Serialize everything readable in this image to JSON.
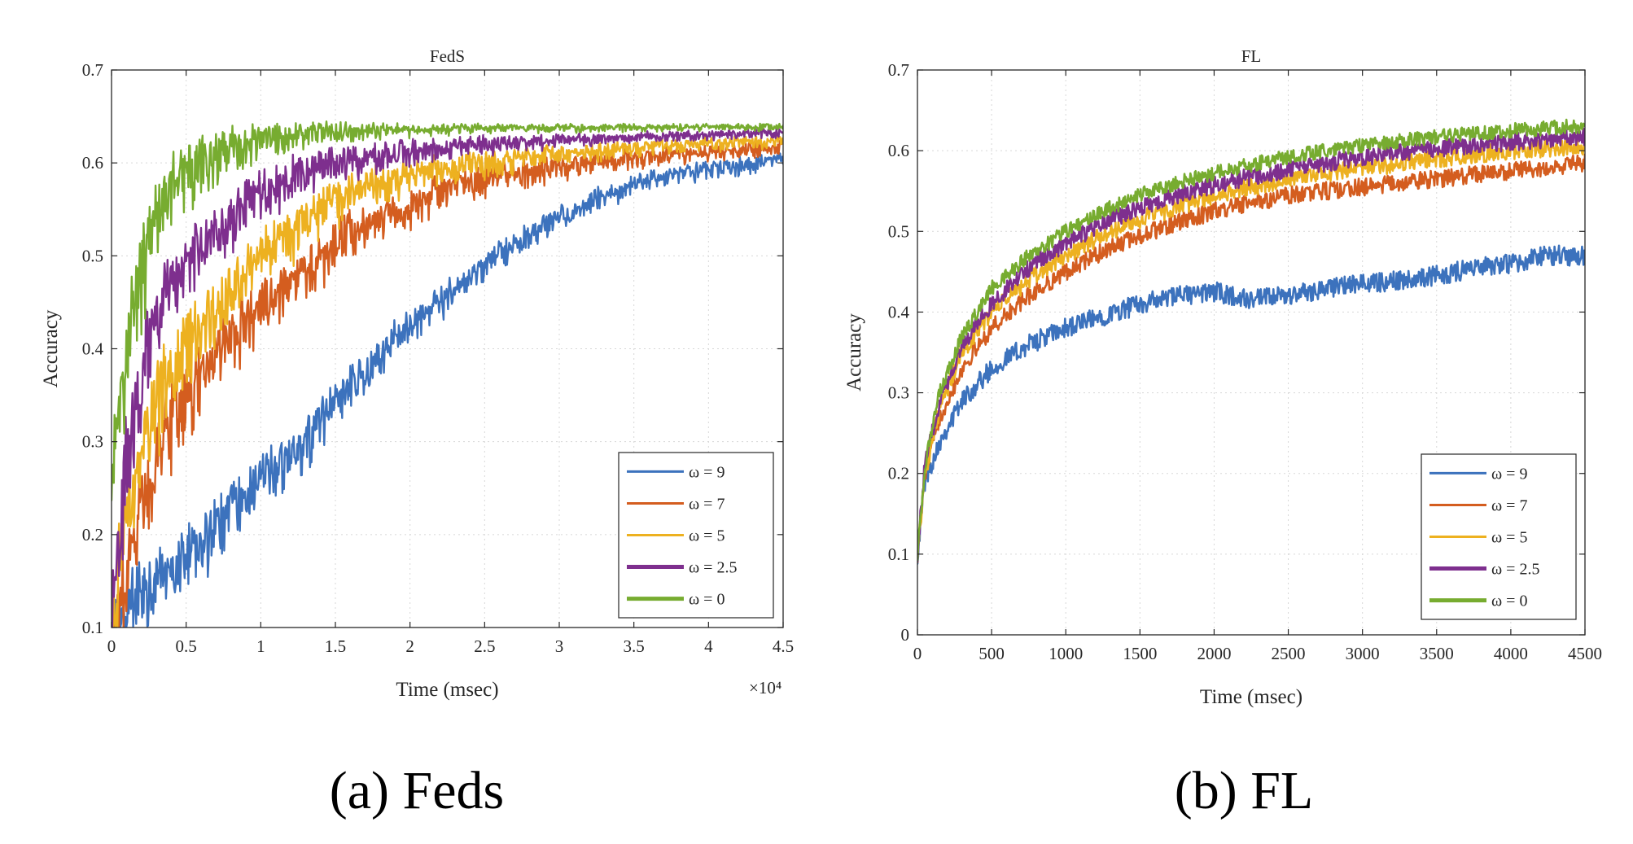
{
  "chart_data": [
    {
      "type": "line",
      "title": "FedS",
      "xlabel": "Time (msec)",
      "ylabel": "Accuracy",
      "x_multiplier": "×10⁴",
      "xlim": [
        0,
        4.5
      ],
      "ylim": [
        0.1,
        0.7
      ],
      "xticks": [
        0,
        0.5,
        1,
        1.5,
        2,
        2.5,
        3,
        3.5,
        4,
        4.5
      ],
      "xtick_labels": [
        "0",
        "0.5",
        "1",
        "1.5",
        "2",
        "2.5",
        "3",
        "3.5",
        "4",
        "4.5"
      ],
      "yticks": [
        0.1,
        0.2,
        0.3,
        0.4,
        0.5,
        0.6,
        0.7
      ],
      "ytick_labels": [
        "0.1",
        "0.2",
        "0.3",
        "0.4",
        "0.5",
        "0.6",
        "0.7"
      ],
      "grid": true,
      "legend_position": "bottom-right",
      "series": [
        {
          "name": "ω = 9",
          "color": "#3c72bd",
          "x": [
            0,
            0.1,
            0.25,
            0.5,
            0.75,
            1,
            1.25,
            1.5,
            1.75,
            2,
            2.25,
            2.5,
            2.75,
            3,
            3.25,
            3.5,
            3.75,
            4,
            4.25,
            4.5
          ],
          "values": [
            0.11,
            0.15,
            0.17,
            0.2,
            0.24,
            0.28,
            0.31,
            0.36,
            0.4,
            0.44,
            0.47,
            0.5,
            0.53,
            0.55,
            0.57,
            0.585,
            0.595,
            0.6,
            0.605,
            0.61
          ]
        },
        {
          "name": "ω = 7",
          "color": "#d45d1f",
          "x": [
            0,
            0.1,
            0.25,
            0.5,
            0.75,
            1,
            1.25,
            1.5,
            1.75,
            2,
            2.25,
            2.5,
            2.75,
            3,
            3.25,
            3.5,
            3.75,
            4,
            4.25,
            4.5
          ],
          "values": [
            0.12,
            0.2,
            0.3,
            0.38,
            0.43,
            0.47,
            0.5,
            0.53,
            0.555,
            0.57,
            0.585,
            0.595,
            0.6,
            0.605,
            0.61,
            0.613,
            0.616,
            0.618,
            0.62,
            0.622
          ]
        },
        {
          "name": "ω = 5",
          "color": "#edb120",
          "x": [
            0,
            0.1,
            0.25,
            0.5,
            0.75,
            1,
            1.25,
            1.5,
            1.75,
            2,
            2.25,
            2.5,
            2.75,
            3,
            3.25,
            3.5,
            3.75,
            4,
            4.25,
            4.5
          ],
          "values": [
            0.14,
            0.26,
            0.36,
            0.43,
            0.48,
            0.52,
            0.55,
            0.575,
            0.59,
            0.6,
            0.606,
            0.61,
            0.614,
            0.617,
            0.62,
            0.622,
            0.624,
            0.626,
            0.627,
            0.628
          ]
        },
        {
          "name": "ω = 2.5",
          "color": "#7e2f8e",
          "x": [
            0,
            0.1,
            0.25,
            0.5,
            0.75,
            1,
            1.25,
            1.5,
            1.75,
            2,
            2.25,
            2.5,
            2.75,
            3,
            3.25,
            3.5,
            3.75,
            4,
            4.25,
            4.5
          ],
          "values": [
            0.14,
            0.33,
            0.45,
            0.52,
            0.56,
            0.59,
            0.605,
            0.613,
            0.618,
            0.622,
            0.625,
            0.627,
            0.629,
            0.63,
            0.631,
            0.632,
            0.633,
            0.634,
            0.635,
            0.636
          ]
        },
        {
          "name": "ω = 0",
          "color": "#77ac30",
          "x": [
            0,
            0.1,
            0.25,
            0.5,
            0.75,
            1,
            1.25,
            1.5,
            1.75,
            2,
            2.25,
            2.5,
            2.75,
            3,
            3.25,
            3.5,
            3.75,
            4,
            4.25,
            4.5
          ],
          "values": [
            0.29,
            0.45,
            0.56,
            0.62,
            0.63,
            0.638,
            0.64,
            0.641,
            0.641,
            0.641,
            0.641,
            0.641,
            0.641,
            0.641,
            0.641,
            0.641,
            0.641,
            0.641,
            0.641,
            0.641
          ]
        }
      ]
    },
    {
      "type": "line",
      "title": "FL",
      "xlabel": "Time (msec)",
      "ylabel": "Accuracy",
      "xlim": [
        0,
        4500
      ],
      "ylim": [
        0,
        0.7
      ],
      "xticks": [
        0,
        500,
        1000,
        1500,
        2000,
        2500,
        3000,
        3500,
        4000,
        4500
      ],
      "xtick_labels": [
        "0",
        "500",
        "1000",
        "1500",
        "2000",
        "2500",
        "3000",
        "3500",
        "4000",
        "4500"
      ],
      "yticks": [
        0,
        0.1,
        0.2,
        0.3,
        0.4,
        0.5,
        0.6,
        0.7
      ],
      "ytick_labels": [
        "0",
        "0.1",
        "0.2",
        "0.3",
        "0.4",
        "0.5",
        "0.6",
        "0.7"
      ],
      "grid": true,
      "legend_position": "bottom-right",
      "series": [
        {
          "name": "ω = 9",
          "color": "#3c72bd",
          "x": [
            0,
            50,
            150,
            300,
            500,
            750,
            1000,
            1250,
            1500,
            1750,
            2000,
            2250,
            2500,
            2750,
            3000,
            3250,
            3500,
            3750,
            4000,
            4250,
            4500
          ],
          "values": [
            0.1,
            0.19,
            0.24,
            0.29,
            0.33,
            0.36,
            0.38,
            0.395,
            0.41,
            0.42,
            0.425,
            0.415,
            0.42,
            0.43,
            0.435,
            0.44,
            0.445,
            0.455,
            0.46,
            0.47,
            0.47
          ]
        },
        {
          "name": "ω = 7",
          "color": "#d45d1f",
          "x": [
            0,
            50,
            150,
            300,
            500,
            750,
            1000,
            1250,
            1500,
            1750,
            2000,
            2250,
            2500,
            2750,
            3000,
            3250,
            3500,
            3750,
            4000,
            4250,
            4500
          ],
          "values": [
            0.1,
            0.2,
            0.27,
            0.33,
            0.38,
            0.42,
            0.45,
            0.475,
            0.495,
            0.51,
            0.525,
            0.535,
            0.545,
            0.55,
            0.555,
            0.56,
            0.565,
            0.57,
            0.575,
            0.58,
            0.585
          ]
        },
        {
          "name": "ω = 5",
          "color": "#edb120",
          "x": [
            0,
            50,
            150,
            300,
            500,
            750,
            1000,
            1250,
            1500,
            1750,
            2000,
            2250,
            2500,
            2750,
            3000,
            3250,
            3500,
            3750,
            4000,
            4250,
            4500
          ],
          "values": [
            0.1,
            0.2,
            0.28,
            0.35,
            0.4,
            0.44,
            0.47,
            0.495,
            0.515,
            0.53,
            0.545,
            0.555,
            0.565,
            0.572,
            0.578,
            0.584,
            0.59,
            0.595,
            0.6,
            0.603,
            0.606
          ]
        },
        {
          "name": "ω = 2.5",
          "color": "#7e2f8e",
          "x": [
            0,
            50,
            150,
            300,
            500,
            750,
            1000,
            1250,
            1500,
            1750,
            2000,
            2250,
            2500,
            2750,
            3000,
            3250,
            3500,
            3750,
            4000,
            4250,
            4500
          ],
          "values": [
            0.1,
            0.21,
            0.29,
            0.36,
            0.41,
            0.455,
            0.485,
            0.51,
            0.53,
            0.545,
            0.558,
            0.568,
            0.577,
            0.585,
            0.592,
            0.598,
            0.603,
            0.607,
            0.611,
            0.614,
            0.617
          ]
        },
        {
          "name": "ω = 0",
          "color": "#77ac30",
          "x": [
            0,
            50,
            150,
            300,
            500,
            750,
            1000,
            1250,
            1500,
            1750,
            2000,
            2250,
            2500,
            2750,
            3000,
            3250,
            3500,
            3750,
            4000,
            4250,
            4500
          ],
          "values": [
            0.1,
            0.21,
            0.3,
            0.37,
            0.43,
            0.47,
            0.5,
            0.525,
            0.545,
            0.56,
            0.572,
            0.583,
            0.592,
            0.6,
            0.606,
            0.612,
            0.617,
            0.621,
            0.625,
            0.628,
            0.631
          ]
        }
      ]
    }
  ],
  "captions": [
    "(a)  Feds",
    "(b)  FL"
  ]
}
